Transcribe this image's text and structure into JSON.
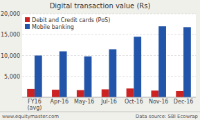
{
  "chart_data": {
    "type": "bar",
    "title": "Digital transaction value (Rs)",
    "categories": [
      "FY16\n(avg)",
      "Apr-16",
      "May-16",
      "Jul-16",
      "Oct-16",
      "Nov-16",
      "Dec-16"
    ],
    "series": [
      {
        "name": "Debit and Credit cards (PoS)",
        "color": "#cc2222",
        "values": [
          2000,
          1800,
          1700,
          1900,
          2100,
          1600,
          1500
        ]
      },
      {
        "name": "Mobile banking",
        "color": "#2255aa",
        "values": [
          10000,
          11000,
          9800,
          11500,
          14500,
          17000,
          16800
        ]
      }
    ],
    "ylim": [
      0,
      20000
    ],
    "yticks": [
      {
        "value": 5000,
        "label": "5,000"
      },
      {
        "value": 10000,
        "label": "10,000"
      },
      {
        "value": 15000,
        "label": "15,000"
      },
      {
        "value": 20000,
        "label": "20,000"
      }
    ],
    "grid": true,
    "legend": "upper left",
    "annotations": [
      "www.equitymaster.com",
      "Data source: SBI Ecowrap"
    ]
  }
}
